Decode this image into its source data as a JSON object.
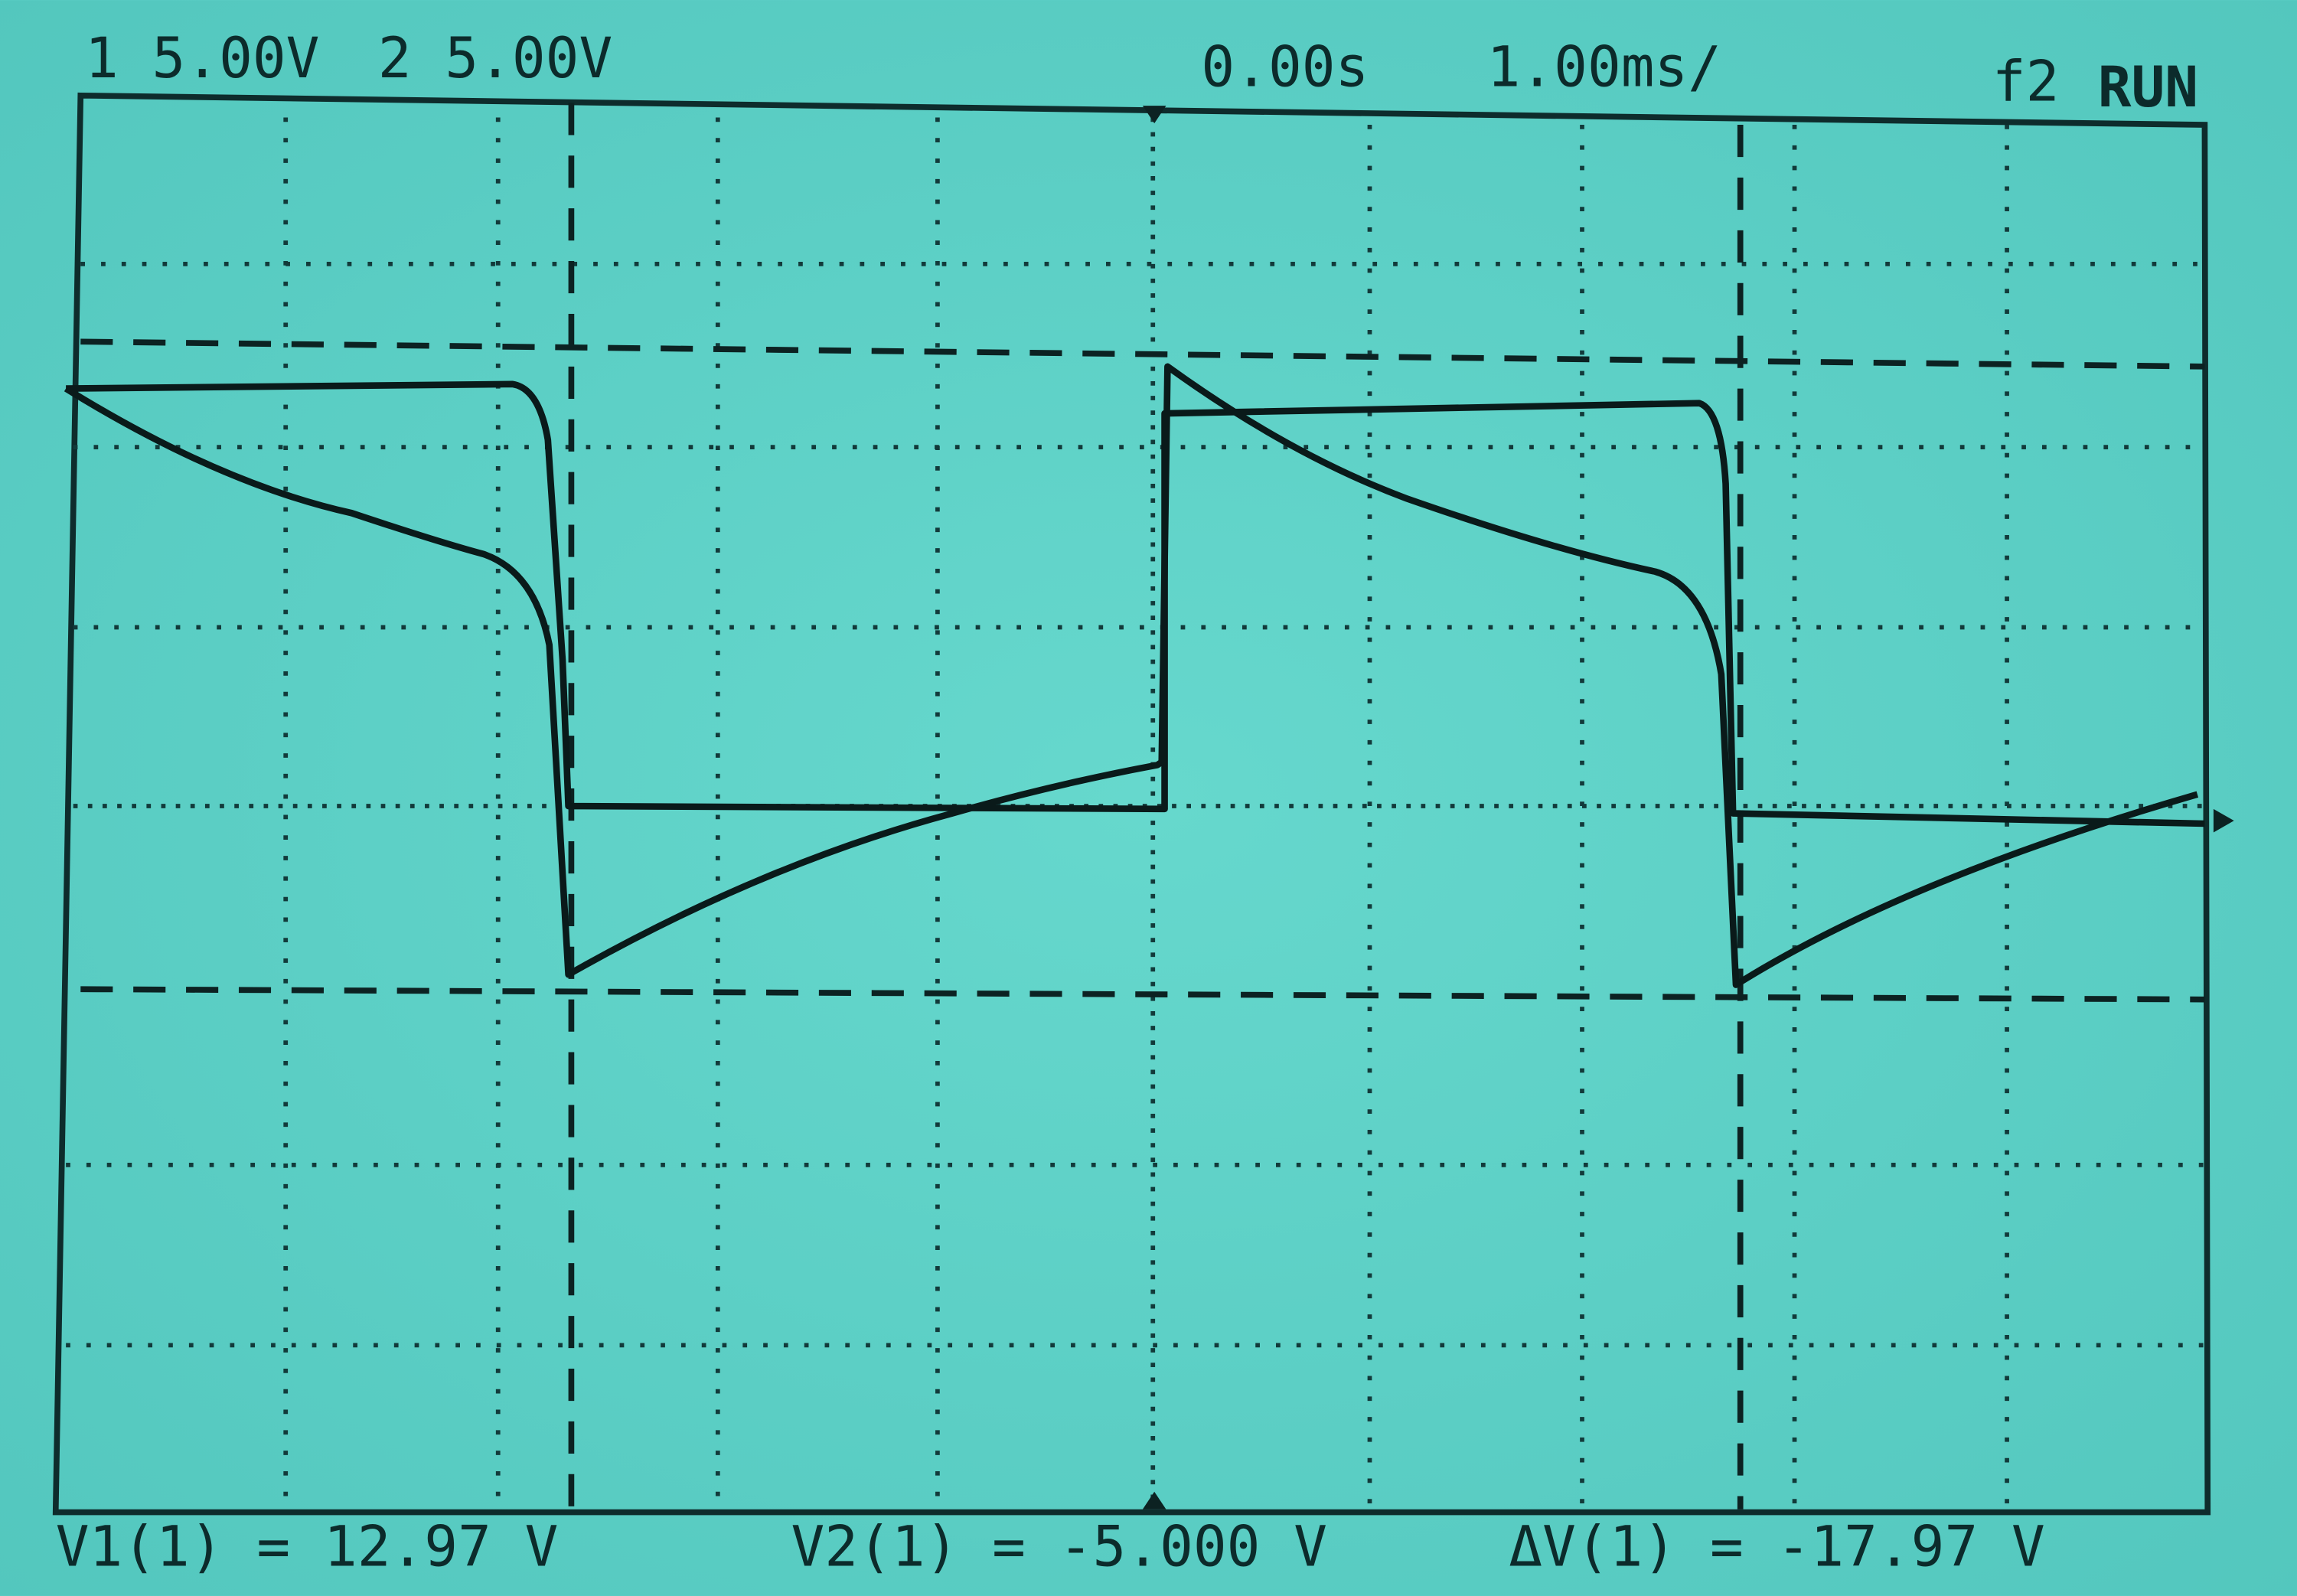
{
  "header": {
    "channel1": "1 5.00V",
    "channel2": "2 5.00V",
    "trigger_time": "0.00s",
    "time_per_div": "1.00ms/",
    "trigger_source": "f2",
    "status": "RUN"
  },
  "footer": {
    "v1": "V1(1) = 12.97 V",
    "v2": "V2(1) = -5.000 V",
    "delta_v": "ΔV(1) = -17.97 V"
  }
}
